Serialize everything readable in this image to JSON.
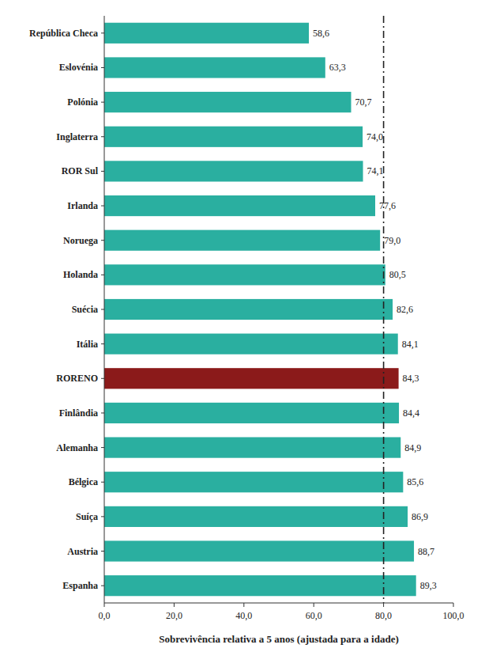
{
  "chart_data": {
    "type": "bar",
    "orientation": "horizontal",
    "categories": [
      "República Checa",
      "Eslovénia",
      "Polónia",
      "Inglaterra",
      "ROR Sul",
      "Irlanda",
      "Noruega",
      "Holanda",
      "Suécia",
      "Itália",
      "RORENO",
      "Finlândia",
      "Alemanha",
      "Bélgica",
      "Suíça",
      "Austria",
      "Espanha"
    ],
    "values": [
      58.6,
      63.3,
      70.7,
      74.0,
      74.1,
      77.6,
      79.0,
      80.5,
      82.6,
      84.1,
      84.3,
      84.4,
      84.9,
      85.6,
      86.9,
      88.7,
      89.3
    ],
    "value_labels": [
      "58,6",
      "63,3",
      "70,7",
      "74,0",
      "74,1",
      "77,6",
      "79,0",
      "80,5",
      "82,6",
      "84,1",
      "84,3",
      "84,4",
      "84,9",
      "85,6",
      "86,9",
      "88,7",
      "89,3"
    ],
    "data_labels": true,
    "colors": [
      "#2aafa0",
      "#2aafa0",
      "#2aafa0",
      "#2aafa0",
      "#2aafa0",
      "#2aafa0",
      "#2aafa0",
      "#2aafa0",
      "#2aafa0",
      "#2aafa0",
      "#8b1a1a",
      "#2aafa0",
      "#2aafa0",
      "#2aafa0",
      "#2aafa0",
      "#2aafa0",
      "#2aafa0"
    ],
    "xlabel": "Sobrevivência relativa a 5 anos (ajustada para a idade)",
    "xlim": [
      0,
      100
    ],
    "xticks": [
      {
        "value": 0,
        "label": "0,0"
      },
      {
        "value": 20,
        "label": "20,0"
      },
      {
        "value": 40,
        "label": "40,0"
      },
      {
        "value": 60,
        "label": "60,0"
      },
      {
        "value": 80,
        "label": "80,0"
      },
      {
        "value": 100,
        "label": "100,0"
      }
    ],
    "reference_line": 80.0,
    "grid": false
  }
}
